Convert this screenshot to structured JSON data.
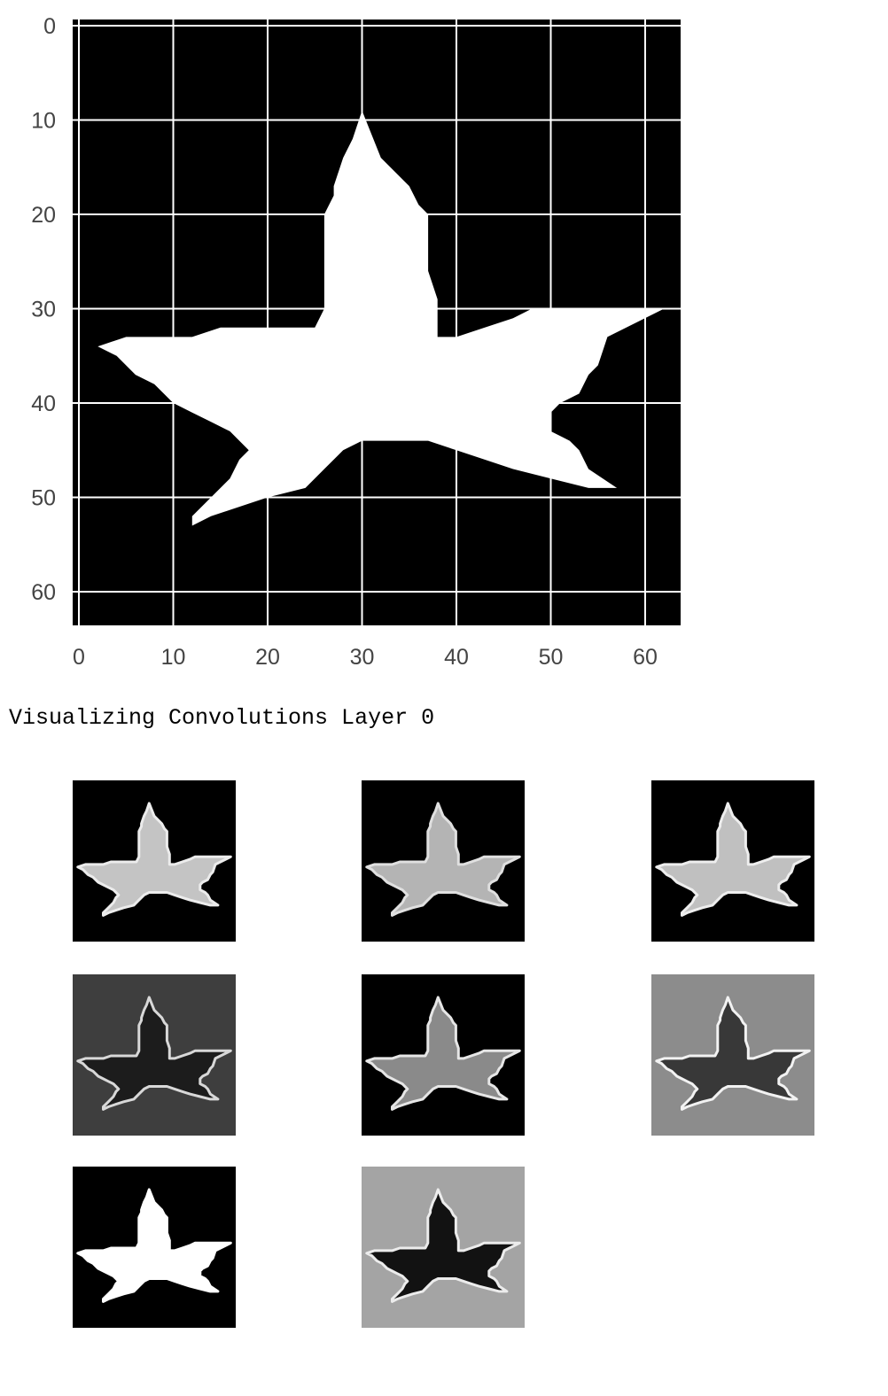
{
  "plot": {
    "x_ticks": [
      "0",
      "10",
      "20",
      "30",
      "40",
      "50",
      "60"
    ],
    "y_ticks": [
      "0",
      "10",
      "20",
      "30",
      "40",
      "50",
      "60"
    ],
    "background_color": "#000000",
    "shape_color": "#ffffff",
    "grid_color": "#ffffff"
  },
  "caption": "Visualizing Convolutions Layer 0",
  "feature_maps": [
    {
      "background": "#000000",
      "fill": "#c4c4c4",
      "edge": "#ececec"
    },
    {
      "background": "#000000",
      "fill": "#b4b4b4",
      "edge": "#e0e0e0"
    },
    {
      "background": "#000000",
      "fill": "#c0c0c0",
      "edge": "#eeeeee"
    },
    {
      "background": "#3e3e3e",
      "fill": "#1c1c1c",
      "edge": "#d8d8d8"
    },
    {
      "background": "#000000",
      "fill": "#8a8a8a",
      "edge": "#e6e6e6"
    },
    {
      "background": "#8c8c8c",
      "fill": "#383838",
      "edge": "#f2f2f2"
    },
    {
      "background": "#000000",
      "fill": "#ffffff",
      "edge": "#ffffff"
    },
    {
      "background": "#a4a4a4",
      "fill": "#121212",
      "edge": "#ececec"
    }
  ]
}
